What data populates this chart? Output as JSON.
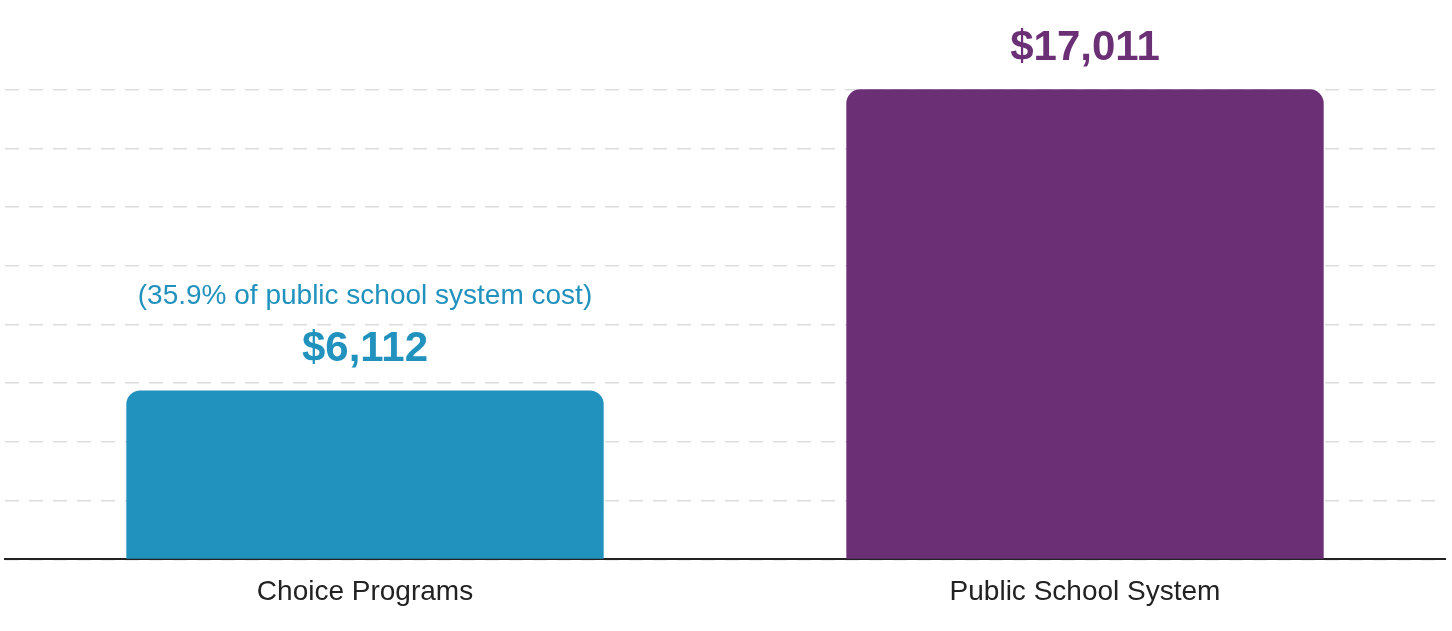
{
  "chart_data": {
    "type": "bar",
    "categories": [
      "Choice Programs",
      "Public School System"
    ],
    "values": [
      6112,
      17011
    ],
    "colors": [
      "#2192bd",
      "#6b2f76"
    ],
    "value_labels": [
      "$6,112",
      "$17,011"
    ],
    "annotations": [
      {
        "text": "(35.9% of public school system cost)",
        "x": "Choice Programs",
        "y": 6112
      }
    ],
    "yticks": [
      {
        "value": 0,
        "label": null
      },
      {
        "value": 2125,
        "label": null
      },
      {
        "value": 4250,
        "label": null
      },
      {
        "value": 6375,
        "label": null
      },
      {
        "value": 8500,
        "label": null
      },
      {
        "value": 10625,
        "label": null
      },
      {
        "value": 12750,
        "label": null
      },
      {
        "value": 14875,
        "label": null
      },
      {
        "value": 17000,
        "label": null
      }
    ],
    "grid": "y",
    "tick_labels": "x"
  }
}
